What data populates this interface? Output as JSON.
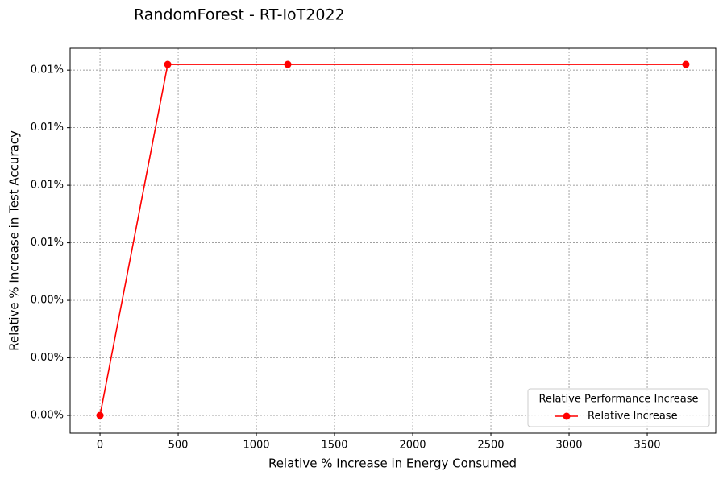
{
  "chart_data": {
    "type": "line",
    "title": "RandomForest - RT-IoT2022",
    "x_label": "Relative % Increase in Energy Consumed",
    "y_label": "Relative % Increase in Test Accuracy",
    "legend_title": "Relative Performance Increase",
    "legend_position": "lower right",
    "grid": true,
    "x": [
      0,
      433,
      1201,
      3747
    ],
    "series": [
      {
        "name": "Relative Increase",
        "color": "#ff0000",
        "values": [
          0,
          0.0122,
          0.0122,
          0.0122
        ]
      }
    ],
    "xlim": [
      -191,
      3938
    ],
    "xticks": [
      0,
      500,
      1000,
      1500,
      2000,
      2500,
      3000,
      3500
    ],
    "ylim": [
      -0.000615,
      0.01276
    ],
    "yticks": [
      {
        "value": 0,
        "label": "0.00%"
      },
      {
        "value": 0.002,
        "label": "0.00%"
      },
      {
        "value": 0.004,
        "label": "0.00%"
      },
      {
        "value": 0.006,
        "label": "0.01%"
      },
      {
        "value": 0.008,
        "label": "0.01%"
      },
      {
        "value": 0.01,
        "label": "0.01%"
      },
      {
        "value": 0.012,
        "label": "0.01%"
      }
    ]
  }
}
